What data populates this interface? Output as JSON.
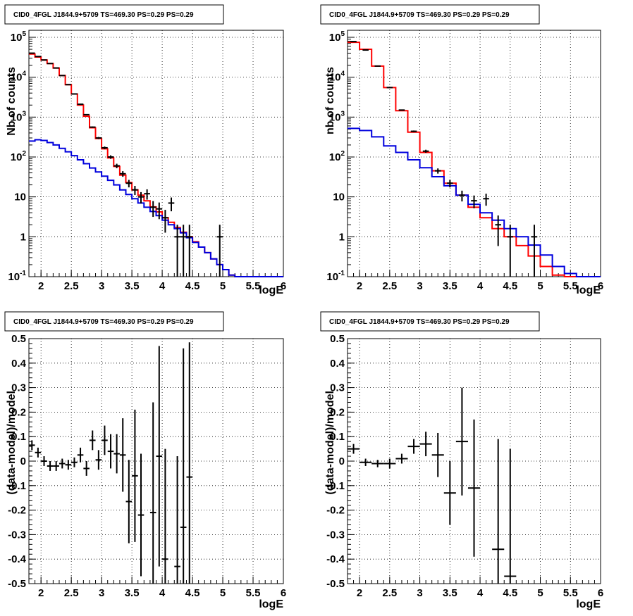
{
  "chart_data": [
    {
      "type": "line",
      "title": "CID0_4FGL J1844.9+5709 TS=469.30 PS=0.29 PS=0.29",
      "xlabel": "logE",
      "ylabel": "Nb of counts",
      "yscale": "log",
      "xlim": [
        1.8,
        6.0
      ],
      "ylim": [
        0.1,
        150000
      ],
      "grid": true,
      "x_ticks": [
        "2",
        "2.5",
        "3",
        "3.5",
        "4",
        "4.5",
        "5",
        "5.5",
        "6"
      ],
      "y_ticks": [
        "10^-1",
        "1",
        "10",
        "10^2",
        "10^3",
        "10^4",
        "10^5"
      ],
      "series": [
        {
          "color": "#ff0000",
          "step_edges": [
            1.8,
            1.9,
            2.0,
            2.1,
            2.2,
            2.3,
            2.4,
            2.5,
            2.6,
            2.7,
            2.8,
            2.9,
            3.0,
            3.1,
            3.2,
            3.3,
            3.4,
            3.5,
            3.6,
            3.7,
            3.8,
            3.9,
            4.0,
            4.1,
            4.2,
            4.3,
            4.4,
            4.5,
            4.6,
            4.7,
            4.8,
            4.9,
            5.0,
            5.1,
            5.2,
            5.3,
            5.4,
            5.5,
            5.6,
            5.7,
            5.8,
            5.9,
            6.0
          ],
          "values": [
            38000,
            32000,
            27000,
            22000,
            17000,
            11000,
            6500,
            3800,
            2000,
            1050,
            540,
            290,
            160,
            95,
            58,
            35,
            23,
            15,
            11,
            8,
            5.6,
            4.2,
            3.0,
            2.3,
            1.7,
            1.3,
            1.0,
            0.75,
            0.55,
            0.4,
            0.28,
            0.2,
            0.15,
            0.11,
            0.1,
            0.1,
            0.1,
            0.1,
            0.1,
            0.1,
            0.1,
            0.1
          ]
        },
        {
          "color": "#0000dd",
          "step_edges": [
            1.8,
            1.9,
            2.0,
            2.1,
            2.2,
            2.3,
            2.4,
            2.5,
            2.6,
            2.7,
            2.8,
            2.9,
            3.0,
            3.1,
            3.2,
            3.3,
            3.4,
            3.5,
            3.6,
            3.7,
            3.8,
            3.9,
            4.0,
            4.1,
            4.2,
            4.3,
            4.4,
            4.5,
            4.6,
            4.7,
            4.8,
            4.9,
            5.0,
            5.1,
            5.2,
            5.3,
            5.4,
            5.5,
            5.6,
            5.7,
            5.8,
            5.9,
            6.0
          ],
          "values": [
            250,
            270,
            260,
            230,
            200,
            165,
            135,
            108,
            85,
            68,
            53,
            42,
            33,
            26,
            20,
            15,
            11.5,
            9,
            7,
            5.5,
            4.3,
            3.4,
            2.6,
            2.0,
            1.6,
            1.25,
            0.95,
            0.72,
            0.55,
            0.4,
            0.28,
            0.2,
            0.15,
            0.11,
            0.1,
            0.1,
            0.1,
            0.1,
            0.1,
            0.1,
            0.1,
            0.1
          ]
        },
        {
          "color": "#000000",
          "points_x": [
            1.85,
            1.95,
            2.05,
            2.15,
            2.25,
            2.35,
            2.45,
            2.55,
            2.65,
            2.75,
            2.85,
            2.95,
            3.05,
            3.15,
            3.25,
            3.35,
            3.45,
            3.55,
            3.65,
            3.75,
            3.85,
            3.95,
            4.05,
            4.15,
            4.25,
            4.35,
            4.45,
            4.95
          ],
          "points_y": [
            40000,
            33000,
            27000,
            22000,
            17000,
            11000,
            6500,
            3800,
            2100,
            1150,
            560,
            300,
            170,
            100,
            60,
            38,
            22,
            15,
            10,
            12,
            5.5,
            5,
            3,
            7,
            1,
            1,
            1,
            1
          ]
        }
      ]
    },
    {
      "type": "line",
      "title": "CID0_4FGL J1844.9+5709 TS=469.30 PS=0.29 PS=0.29",
      "xlabel": "logE",
      "ylabel": "nb of counts",
      "yscale": "log",
      "xlim": [
        1.8,
        6.0
      ],
      "ylim": [
        0.1,
        150000
      ],
      "grid": true,
      "x_ticks": [
        "2",
        "2.5",
        "3",
        "3.5",
        "4",
        "4.5",
        "5",
        "5.5",
        "6"
      ],
      "y_ticks": [
        "10^-1",
        "1",
        "10",
        "10^2",
        "10^3",
        "10^4",
        "10^5"
      ],
      "series": [
        {
          "color": "#ff0000",
          "step_edges": [
            1.8,
            2.0,
            2.2,
            2.4,
            2.6,
            2.8,
            3.0,
            3.2,
            3.4,
            3.6,
            3.8,
            4.0,
            4.2,
            4.4,
            4.6,
            4.8,
            5.0,
            5.2,
            5.4,
            5.6,
            5.8,
            6.0
          ],
          "values": [
            75000,
            50000,
            19000,
            5500,
            1450,
            420,
            130,
            45,
            22,
            11,
            5.5,
            3.0,
            1.6,
            1.0,
            0.6,
            0.33,
            0.18,
            0.11,
            0.1,
            0.1,
            0.1
          ]
        },
        {
          "color": "#0000dd",
          "step_edges": [
            1.8,
            2.0,
            2.2,
            2.4,
            2.6,
            2.8,
            3.0,
            3.2,
            3.4,
            3.6,
            3.8,
            4.0,
            4.2,
            4.4,
            4.6,
            4.8,
            5.0,
            5.2,
            5.4,
            5.6,
            5.8,
            6.0
          ],
          "values": [
            520,
            460,
            320,
            190,
            130,
            85,
            54,
            32,
            19,
            11,
            6.5,
            4.0,
            2.6,
            1.6,
            1.0,
            0.62,
            0.35,
            0.18,
            0.12,
            0.1,
            0.1
          ]
        },
        {
          "color": "#000000",
          "points_x": [
            1.9,
            2.1,
            2.3,
            2.5,
            2.7,
            2.9,
            3.1,
            3.3,
            3.5,
            3.7,
            3.9,
            4.1,
            4.3,
            4.5,
            4.9
          ],
          "points_y": [
            78000,
            48000,
            19000,
            5500,
            1500,
            440,
            140,
            45,
            22,
            11,
            8,
            9,
            2,
            1,
            1
          ]
        }
      ]
    },
    {
      "type": "scatter",
      "title": "CID0_4FGL J1844.9+5709 TS=469.30 PS=0.29 PS=0.29",
      "xlabel": "logE",
      "ylabel": "(data-model)/model",
      "xlim": [
        1.8,
        6.0
      ],
      "ylim": [
        -0.5,
        0.5
      ],
      "grid": true,
      "x_ticks": [
        "2",
        "2.5",
        "3",
        "3.5",
        "4",
        "4.5",
        "5",
        "5.5",
        "6"
      ],
      "y_ticks": [
        "-0.5",
        "-0.4",
        "-0.3",
        "-0.2",
        "-0.1",
        "0",
        "0.1",
        "0.2",
        "0.3",
        "0.4",
        "0.5"
      ],
      "series": [
        {
          "color": "#000000",
          "x": [
            1.85,
            1.95,
            2.05,
            2.15,
            2.25,
            2.35,
            2.45,
            2.55,
            2.65,
            2.75,
            2.85,
            2.95,
            3.05,
            3.15,
            3.25,
            3.35,
            3.45,
            3.55,
            3.65,
            3.85,
            3.95,
            4.05,
            4.25,
            4.35,
            4.45
          ],
          "y": [
            0.065,
            0.035,
            0.0,
            -0.02,
            -0.02,
            -0.01,
            -0.015,
            -0.005,
            0.025,
            -0.03,
            0.085,
            0.005,
            0.085,
            0.04,
            0.03,
            0.025,
            -0.165,
            -0.06,
            -0.22,
            -0.21,
            0.02,
            -0.4,
            -0.43,
            -0.27,
            -0.065
          ],
          "err": [
            0.02,
            0.02,
            0.02,
            0.02,
            0.02,
            0.02,
            0.02,
            0.02,
            0.03,
            0.03,
            0.04,
            0.04,
            0.06,
            0.07,
            0.08,
            0.15,
            0.17,
            0.27,
            0.25,
            0.45,
            0.45,
            0.45,
            0.45,
            0.73,
            0.55
          ]
        }
      ]
    },
    {
      "type": "scatter",
      "title": "CID0_4FGL J1844.9+5709 TS=469.30 PS=0.29 PS=0.29",
      "xlabel": "logE",
      "ylabel": "(data-model)/model",
      "xlim": [
        1.8,
        6.0
      ],
      "ylim": [
        -0.5,
        0.5
      ],
      "grid": true,
      "x_ticks": [
        "2",
        "2.5",
        "3",
        "3.5",
        "4",
        "4.5",
        "5",
        "5.5",
        "6"
      ],
      "y_ticks": [
        "-0.5",
        "-0.4",
        "-0.3",
        "-0.2",
        "-0.1",
        "0",
        "0.1",
        "0.2",
        "0.3",
        "0.4",
        "0.5"
      ],
      "series": [
        {
          "color": "#000000",
          "x": [
            1.9,
            2.1,
            2.3,
            2.5,
            2.7,
            2.9,
            3.1,
            3.3,
            3.5,
            3.7,
            3.9,
            4.3,
            4.5
          ],
          "y": [
            0.05,
            -0.005,
            -0.01,
            -0.01,
            0.01,
            0.06,
            0.07,
            0.025,
            -0.13,
            0.08,
            -0.11,
            -0.36,
            -0.47
          ],
          "err": [
            0.02,
            0.015,
            0.015,
            0.02,
            0.02,
            0.03,
            0.05,
            0.09,
            0.13,
            0.22,
            0.28,
            0.45,
            0.52
          ]
        }
      ]
    }
  ]
}
